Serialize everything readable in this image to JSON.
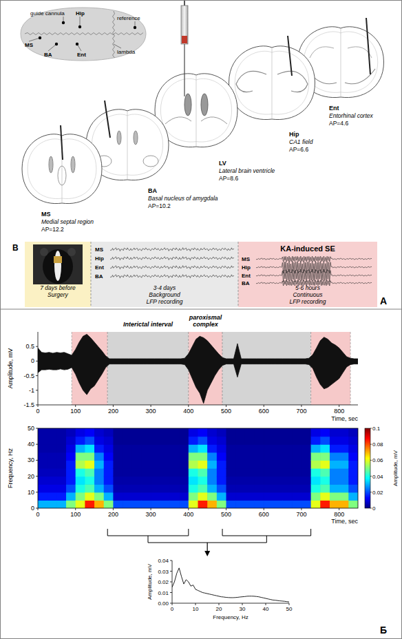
{
  "panel_a": {
    "letter": "A",
    "skull_map": {
      "labels": [
        "guide cannula",
        "Hip",
        "reference",
        "MS",
        "BA",
        "Ent",
        "lambda"
      ]
    },
    "slices": [
      {
        "abbr": "MS",
        "name": "Medial septal region",
        "ap": "AP=12.2"
      },
      {
        "abbr": "BA",
        "name": "Basal nucleus of amygdala",
        "ap": "AP=10.2"
      },
      {
        "abbr": "LV",
        "name": "Lateral brain ventricle",
        "ap": "AP=8.6"
      },
      {
        "abbr": "Hip",
        "name": "CA1 field",
        "ap": "AP=6.6"
      },
      {
        "abbr": "Ent",
        "name": "Entorhinal cortex",
        "ap": "AP=4.6"
      }
    ],
    "timeline": {
      "letter": "B",
      "channels": [
        "MS",
        "Hip",
        "Ent",
        "BA"
      ],
      "stages": [
        {
          "period": "7 days before",
          "label": [
            "Surgery"
          ]
        },
        {
          "period": "3-4 days",
          "label": [
            "Background",
            "LFP recording"
          ]
        },
        {
          "title": "KA-induced SE",
          "period": "5-6 hours",
          "label": [
            "Continuous",
            "LFP recording"
          ]
        }
      ]
    }
  },
  "panel_b": {
    "letter": "Б"
  },
  "chart_data": [
    {
      "type": "area",
      "ylabel": "Amplitude, mV",
      "xlabel": "Time, sec",
      "x": [
        0,
        10,
        20,
        30,
        40,
        50,
        60,
        70,
        80,
        90,
        100,
        110,
        120,
        130,
        140,
        150,
        160,
        170,
        180,
        190,
        200,
        210,
        220,
        230,
        240,
        250,
        260,
        270,
        280,
        290,
        300,
        310,
        320,
        330,
        340,
        350,
        360,
        370,
        380,
        390,
        400,
        410,
        420,
        430,
        440,
        450,
        460,
        470,
        480,
        490,
        500,
        510,
        520,
        530,
        540,
        550,
        560,
        570,
        580,
        590,
        600,
        610,
        620,
        630,
        640,
        650,
        660,
        670,
        680,
        690,
        700,
        710,
        720,
        730,
        740,
        750,
        760,
        770,
        780,
        790,
        800,
        810,
        820,
        830,
        840,
        850
      ],
      "series": [
        {
          "color": "#111111",
          "values": [
            0.45,
            0.3,
            0.28,
            0.3,
            0.27,
            0.3,
            0.28,
            0.3,
            0.25,
            0.2,
            0.4,
            0.65,
            0.85,
            0.92,
            0.8,
            0.65,
            0.5,
            0.35,
            0.18,
            0.08,
            0.08,
            0.08,
            0.08,
            0.08,
            0.08,
            0.08,
            0.08,
            0.08,
            0.08,
            0.08,
            0.08,
            0.08,
            0.08,
            0.08,
            0.08,
            0.08,
            0.08,
            0.08,
            0.08,
            0.1,
            0.25,
            0.5,
            0.75,
            0.85,
            0.8,
            0.7,
            0.55,
            0.4,
            0.25,
            0.12,
            0.08,
            0.08,
            0.08,
            0.6,
            0.08,
            0.08,
            0.08,
            0.08,
            0.08,
            0.08,
            0.08,
            0.08,
            0.08,
            0.08,
            0.08,
            0.08,
            0.08,
            0.08,
            0.08,
            0.08,
            0.08,
            0.08,
            0.1,
            0.22,
            0.45,
            0.7,
            0.82,
            0.75,
            0.62,
            0.55,
            0.45,
            0.3,
            0.15,
            0.1,
            0.08,
            0.08
          ]
        },
        {
          "color": "#111111",
          "values": [
            -0.4,
            -0.3,
            -0.3,
            -0.28,
            -0.3,
            -0.3,
            -0.27,
            -0.3,
            -0.28,
            -0.22,
            -0.45,
            -0.75,
            -1.0,
            -1.15,
            -0.95,
            -0.85,
            -0.65,
            -0.45,
            -0.22,
            -0.1,
            -0.1,
            -0.1,
            -0.1,
            -0.1,
            -0.1,
            -0.1,
            -0.1,
            -0.1,
            -0.1,
            -0.1,
            -0.1,
            -0.1,
            -0.1,
            -0.1,
            -0.1,
            -0.1,
            -0.1,
            -0.1,
            -0.1,
            -0.12,
            -0.3,
            -0.6,
            -0.9,
            -1.1,
            -1.45,
            -1.0,
            -0.75,
            -0.5,
            -0.3,
            -0.15,
            -0.1,
            -0.1,
            -0.1,
            -0.55,
            -0.1,
            -0.1,
            -0.1,
            -0.1,
            -0.1,
            -0.1,
            -0.1,
            -0.1,
            -0.1,
            -0.1,
            -0.1,
            -0.1,
            -0.1,
            -0.1,
            -0.1,
            -0.1,
            -0.1,
            -0.1,
            -0.12,
            -0.25,
            -0.55,
            -0.8,
            -0.95,
            -0.9,
            -0.8,
            -0.7,
            -0.6,
            -0.4,
            -0.2,
            -0.12,
            -0.1,
            -0.1
          ]
        }
      ],
      "regions": [
        {
          "start": 90,
          "end": 185,
          "color": "#f6c9c9"
        },
        {
          "start": 185,
          "end": 400,
          "color": "#d4d4d4",
          "label": "Interictal interval"
        },
        {
          "start": 400,
          "end": 490,
          "color": "#f6c9c9",
          "label": "paroxismal complex"
        },
        {
          "start": 490,
          "end": 725,
          "color": "#d4d4d4"
        },
        {
          "start": 725,
          "end": 830,
          "color": "#f6c9c9"
        }
      ],
      "xlim": [
        0,
        850
      ],
      "xticks": [
        0,
        100,
        200,
        300,
        400,
        500,
        600,
        700,
        800
      ],
      "ylim": [
        -1.5,
        1
      ],
      "yticks": [
        -1.5,
        -1,
        -0.5,
        0,
        0.5
      ]
    },
    {
      "type": "heatmap",
      "ylabel": "Frequency, Hz",
      "xlabel": "Time, sec",
      "x_bins": [
        0,
        25,
        50,
        75,
        100,
        125,
        150,
        175,
        200,
        225,
        250,
        275,
        300,
        325,
        350,
        375,
        400,
        425,
        450,
        475,
        500,
        525,
        550,
        575,
        600,
        625,
        650,
        675,
        700,
        725,
        750,
        775,
        800,
        825,
        850
      ],
      "y_bins": [
        0,
        5,
        10,
        15,
        20,
        25,
        30,
        35,
        40,
        45,
        50
      ],
      "cells": [
        [
          0.03,
          0.015,
          0.01,
          0.008,
          0.006,
          0.005,
          0.005,
          0.004,
          0.004,
          0.004
        ],
        [
          0.03,
          0.015,
          0.01,
          0.008,
          0.006,
          0.005,
          0.005,
          0.004,
          0.004,
          0.004
        ],
        [
          0.03,
          0.015,
          0.01,
          0.008,
          0.006,
          0.005,
          0.005,
          0.004,
          0.004,
          0.004
        ],
        [
          0.05,
          0.03,
          0.02,
          0.015,
          0.015,
          0.015,
          0.012,
          0.01,
          0.008,
          0.006
        ],
        [
          0.06,
          0.05,
          0.04,
          0.035,
          0.04,
          0.055,
          0.05,
          0.03,
          0.015,
          0.01
        ],
        [
          0.085,
          0.06,
          0.045,
          0.04,
          0.045,
          0.06,
          0.05,
          0.035,
          0.02,
          0.012
        ],
        [
          0.07,
          0.05,
          0.03,
          0.025,
          0.025,
          0.03,
          0.025,
          0.015,
          0.01,
          0.008
        ],
        [
          0.05,
          0.03,
          0.02,
          0.015,
          0.015,
          0.015,
          0.012,
          0.01,
          0.008,
          0.006
        ],
        [
          0.02,
          0.008,
          0.005,
          0.004,
          0.003,
          0.003,
          0.003,
          0.003,
          0.002,
          0.002
        ],
        [
          0.02,
          0.008,
          0.005,
          0.004,
          0.003,
          0.003,
          0.003,
          0.003,
          0.002,
          0.002
        ],
        [
          0.02,
          0.008,
          0.005,
          0.004,
          0.003,
          0.003,
          0.003,
          0.003,
          0.002,
          0.002
        ],
        [
          0.02,
          0.008,
          0.005,
          0.004,
          0.003,
          0.003,
          0.003,
          0.003,
          0.002,
          0.002
        ],
        [
          0.02,
          0.008,
          0.005,
          0.004,
          0.003,
          0.003,
          0.003,
          0.003,
          0.002,
          0.002
        ],
        [
          0.02,
          0.008,
          0.005,
          0.004,
          0.003,
          0.003,
          0.003,
          0.003,
          0.002,
          0.002
        ],
        [
          0.02,
          0.008,
          0.005,
          0.004,
          0.003,
          0.003,
          0.003,
          0.003,
          0.002,
          0.002
        ],
        [
          0.02,
          0.008,
          0.005,
          0.004,
          0.003,
          0.003,
          0.003,
          0.003,
          0.002,
          0.002
        ],
        [
          0.06,
          0.05,
          0.04,
          0.035,
          0.04,
          0.055,
          0.05,
          0.03,
          0.015,
          0.01
        ],
        [
          0.085,
          0.06,
          0.045,
          0.04,
          0.045,
          0.06,
          0.05,
          0.035,
          0.02,
          0.012
        ],
        [
          0.07,
          0.05,
          0.03,
          0.025,
          0.025,
          0.03,
          0.025,
          0.015,
          0.01,
          0.008
        ],
        [
          0.05,
          0.03,
          0.02,
          0.015,
          0.015,
          0.015,
          0.012,
          0.01,
          0.008,
          0.006
        ],
        [
          0.02,
          0.008,
          0.005,
          0.004,
          0.003,
          0.003,
          0.003,
          0.003,
          0.002,
          0.002
        ],
        [
          0.02,
          0.008,
          0.005,
          0.004,
          0.003,
          0.003,
          0.003,
          0.003,
          0.002,
          0.002
        ],
        [
          0.02,
          0.008,
          0.005,
          0.004,
          0.003,
          0.003,
          0.003,
          0.003,
          0.002,
          0.002
        ],
        [
          0.02,
          0.008,
          0.005,
          0.004,
          0.003,
          0.003,
          0.003,
          0.003,
          0.002,
          0.002
        ],
        [
          0.02,
          0.008,
          0.005,
          0.004,
          0.003,
          0.003,
          0.003,
          0.003,
          0.002,
          0.002
        ],
        [
          0.02,
          0.008,
          0.005,
          0.004,
          0.003,
          0.003,
          0.003,
          0.003,
          0.002,
          0.002
        ],
        [
          0.02,
          0.008,
          0.005,
          0.004,
          0.003,
          0.003,
          0.003,
          0.003,
          0.002,
          0.002
        ],
        [
          0.02,
          0.008,
          0.005,
          0.004,
          0.003,
          0.003,
          0.003,
          0.003,
          0.002,
          0.002
        ],
        [
          0.02,
          0.008,
          0.005,
          0.004,
          0.003,
          0.003,
          0.003,
          0.003,
          0.002,
          0.002
        ],
        [
          0.06,
          0.05,
          0.04,
          0.035,
          0.04,
          0.055,
          0.05,
          0.03,
          0.015,
          0.01
        ],
        [
          0.085,
          0.06,
          0.045,
          0.04,
          0.045,
          0.06,
          0.05,
          0.035,
          0.02,
          0.012
        ],
        [
          0.07,
          0.05,
          0.03,
          0.025,
          0.025,
          0.03,
          0.025,
          0.015,
          0.01,
          0.008
        ],
        [
          0.07,
          0.05,
          0.03,
          0.025,
          0.025,
          0.03,
          0.025,
          0.015,
          0.01,
          0.008
        ],
        [
          0.05,
          0.03,
          0.02,
          0.015,
          0.015,
          0.015,
          0.012,
          0.01,
          0.008,
          0.006
        ]
      ],
      "xlim": [
        0,
        850
      ],
      "xticks": [
        0,
        100,
        200,
        300,
        400,
        500,
        600,
        700,
        800
      ],
      "ylim": [
        0,
        50
      ],
      "yticks": [
        0,
        10,
        20,
        30,
        40,
        50
      ],
      "colorbar": {
        "range": [
          0,
          0.1
        ],
        "ticks": [
          0,
          0.02,
          0.04,
          0.06,
          0.08,
          0.1
        ],
        "label": "Amplitude, mV"
      }
    },
    {
      "type": "line",
      "ylabel": "Amplitude, mV",
      "xlabel": "Frequency, Hz",
      "x": [
        0,
        1,
        2,
        3,
        4,
        5,
        6,
        7,
        8,
        9,
        10,
        11,
        12,
        13,
        14,
        15,
        16,
        17,
        18,
        19,
        20,
        21,
        22,
        23,
        24,
        25,
        26,
        27,
        28,
        29,
        30,
        31,
        32,
        33,
        34,
        35,
        36,
        37,
        38,
        39,
        40,
        41,
        42,
        43,
        44,
        45,
        46,
        47,
        48,
        49,
        50
      ],
      "series": [
        {
          "color": "#222222",
          "values": [
            0.015,
            0.02,
            0.028,
            0.033,
            0.025,
            0.018,
            0.022,
            0.02,
            0.016,
            0.017,
            0.013,
            0.012,
            0.011,
            0.01,
            0.0095,
            0.009,
            0.0085,
            0.008,
            0.0075,
            0.007,
            0.0065,
            0.006,
            0.0058,
            0.0055,
            0.0053,
            0.0052,
            0.0052,
            0.0053,
            0.0055,
            0.0058,
            0.006,
            0.0062,
            0.0065,
            0.0066,
            0.0066,
            0.0065,
            0.0063,
            0.006,
            0.0055,
            0.005,
            0.0045,
            0.004,
            0.0035,
            0.003,
            0.0028,
            0.0025,
            0.0022,
            0.002,
            0.0018,
            0.0015,
            0.0012
          ]
        }
      ],
      "xlim": [
        0,
        50
      ],
      "xticks": [
        0,
        10,
        20,
        30,
        40,
        50
      ],
      "ylim": [
        0,
        0.04
      ],
      "yticks": [
        {
          "value": 0,
          "label": "0.00"
        },
        0.01,
        0.02,
        0.03,
        0.04
      ]
    }
  ]
}
